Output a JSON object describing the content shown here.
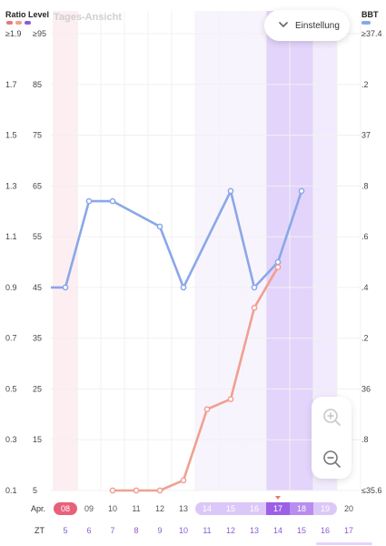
{
  "header": {
    "left_legend_title": "Ratio Level",
    "right_legend_title": "BBT",
    "view_tab": "Tages-Ansicht",
    "settings_label": "Einstellung"
  },
  "legend_colors": {
    "ratio": [
      "#e9777b",
      "#f0a090",
      "#8a5cd8"
    ],
    "bbt": "#8aa7e8"
  },
  "icons": {
    "settings": "chevron-down-icon",
    "zoom_in": "zoom-in-icon",
    "zoom_out": "zoom-out-icon"
  },
  "chart_data": {
    "type": "line",
    "left_axis_ratio_ticks": [
      "≥1.9",
      "1.7",
      "1.5",
      "1.3",
      "1.1",
      "0.9",
      "0.7",
      "0.5",
      "0.3",
      "0.1"
    ],
    "left_axis_level_ticks": [
      "≥95",
      "85",
      "75",
      "65",
      "55",
      "45",
      "35",
      "25",
      "15",
      "5"
    ],
    "right_axis_ticks": [
      "≥37.4",
      ".2",
      "37",
      ".8",
      ".6",
      ".4",
      ".2",
      "36",
      ".8",
      "≤35.6"
    ],
    "x_row1_prefix": "Apr.",
    "x_row2_prefix": "ZT",
    "dates": [
      "08",
      "09",
      "10",
      "11",
      "12",
      "13",
      "14",
      "15",
      "16",
      "17",
      "18",
      "19",
      "20"
    ],
    "cycle_days": [
      "5",
      "6",
      "7",
      "8",
      "9",
      "10",
      "11",
      "12",
      "13",
      "14",
      "15",
      "16",
      "17"
    ],
    "selected_date": "17",
    "series": [
      {
        "color": "#8aa7e8",
        "values": [
          45,
          62,
          62,
          null,
          57,
          45,
          null,
          64,
          45,
          50,
          64,
          null,
          null
        ],
        "lead_in_from_left": 45
      },
      {
        "color": "#f0a090",
        "values": [
          null,
          null,
          5,
          5,
          5,
          7,
          21,
          23,
          41,
          49,
          null,
          null,
          null
        ]
      }
    ],
    "ylim_level": [
      5,
      95
    ]
  }
}
